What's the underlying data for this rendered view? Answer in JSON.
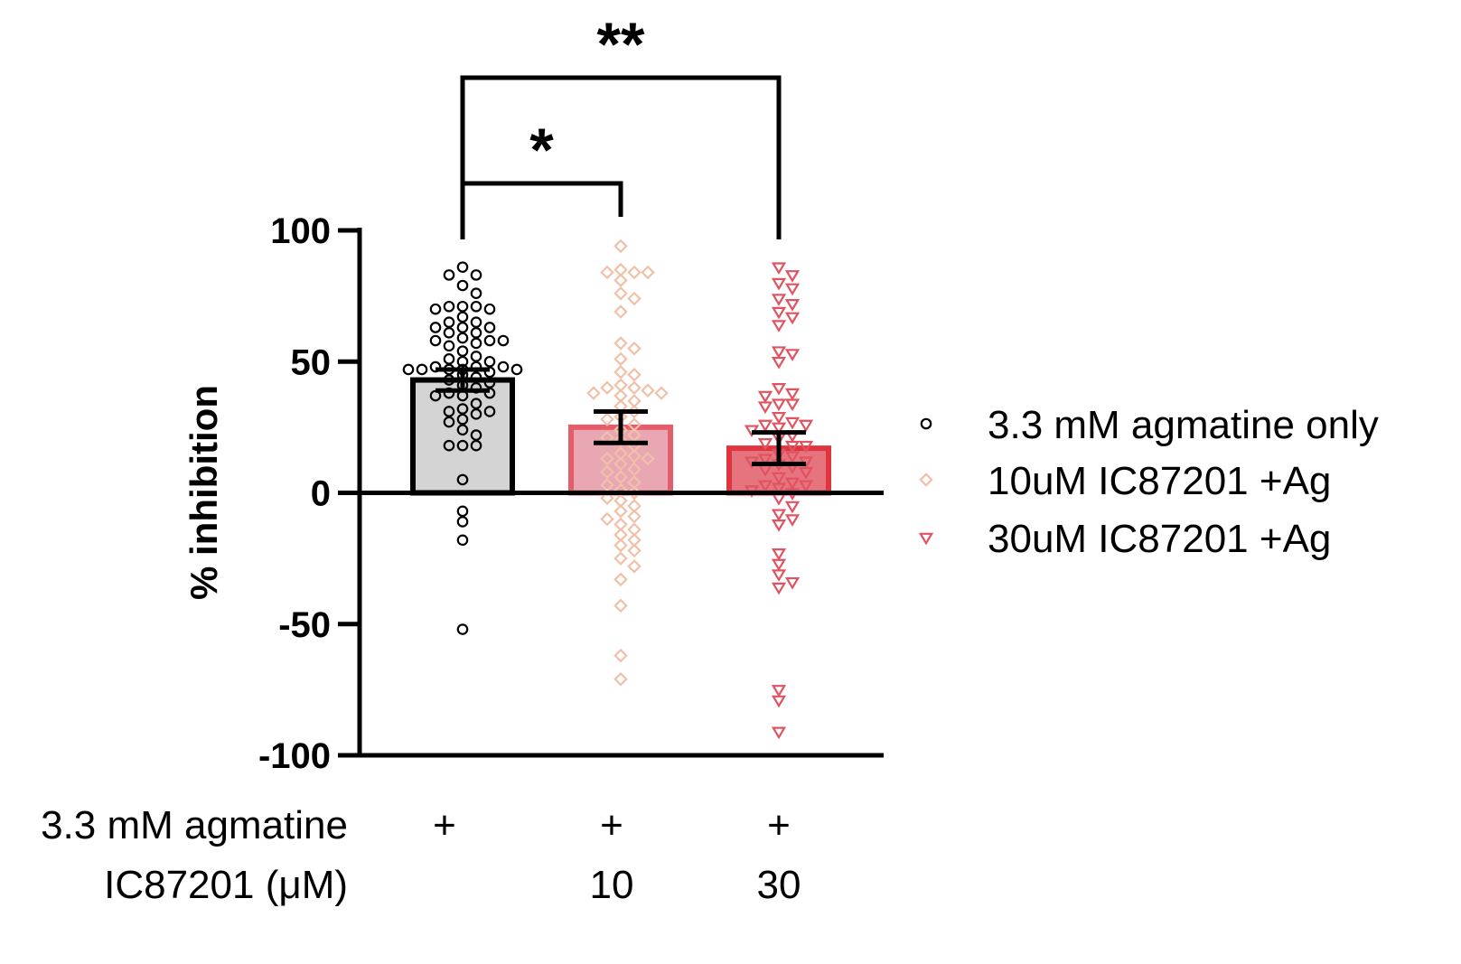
{
  "chart_data": {
    "type": "bar",
    "ylabel": "% inhibition",
    "ylim": [
      -100,
      100
    ],
    "yticks": [
      "100",
      "50",
      "0",
      "-50",
      "-100"
    ],
    "grid": false,
    "legend_position": "right",
    "categories": [
      "3.3 mM agmatine only",
      "10uM IC87201 +Ag",
      "30uM IC87201 +Ag"
    ],
    "series": [
      {
        "name": "3.3 mM agmatine only",
        "mean": 43,
        "sem": 4,
        "marker": "circle",
        "color": "#000000",
        "bar_fill": "#d4d4d4",
        "bar_stroke": "#000000",
        "points": [
          86,
          83,
          83,
          79,
          76,
          71,
          71,
          71,
          70,
          70,
          67,
          65,
          65,
          63,
          63,
          63,
          61,
          61,
          59,
          58,
          58,
          58,
          57,
          56,
          54,
          52,
          51,
          50,
          50,
          48,
          48,
          48,
          47,
          47,
          47,
          47,
          47,
          46,
          45,
          44,
          43,
          42,
          41,
          40,
          38,
          38,
          37,
          37,
          34,
          32,
          31,
          31,
          30,
          28,
          27,
          24,
          22,
          18,
          18,
          18,
          5,
          -7,
          -11,
          -18,
          -52
        ]
      },
      {
        "name": "10uM IC87201 +Ag",
        "mean": 25,
        "sem": 6,
        "marker": "diamond",
        "color": "#f0c0a8",
        "bar_fill": "#e8a7b3",
        "bar_stroke": "#e45d6a",
        "points": [
          94,
          85,
          84,
          84,
          84,
          81,
          76,
          74,
          69,
          57,
          55,
          51,
          46,
          45,
          41,
          40,
          40,
          39,
          38,
          38,
          37,
          35,
          33,
          31,
          29,
          28,
          26,
          24,
          22,
          21,
          20,
          18,
          15,
          14,
          13,
          13,
          11,
          9,
          8,
          6,
          4,
          3,
          1,
          0,
          -2,
          -3,
          -5,
          -7,
          -9,
          -10,
          -12,
          -14,
          -16,
          -18,
          -20,
          -22,
          -25,
          -28,
          -33,
          -43,
          -62,
          -71
        ]
      },
      {
        "name": "30uM IC87201 +Ag",
        "mean": 17,
        "sem": 6,
        "marker": "triangle-down",
        "color": "#e05360",
        "bar_fill": "#e6747e",
        "bar_stroke": "#e0353f",
        "points": [
          86,
          83,
          80,
          78,
          74,
          72,
          69,
          67,
          64,
          54,
          53,
          50,
          40,
          38,
          37,
          34,
          34,
          33,
          29,
          27,
          26,
          26,
          25,
          24,
          22,
          21,
          19,
          18,
          18,
          15,
          14,
          13,
          12,
          12,
          11,
          10,
          9,
          8,
          6,
          4,
          3,
          3,
          2,
          1,
          0,
          -2,
          -5,
          -8,
          -10,
          -12,
          -23,
          -27,
          -31,
          -34,
          -36,
          -75,
          -79,
          -91
        ]
      }
    ],
    "significance": [
      {
        "from": 0,
        "to": 1,
        "label": "*"
      },
      {
        "from": 0,
        "to": 2,
        "label": "**"
      }
    ],
    "conditions": [
      {
        "label": "3.3 mM agmatine",
        "values": [
          "+",
          "+",
          "+"
        ]
      },
      {
        "label": "IC87201 (μM)",
        "values": [
          "",
          "10",
          "30"
        ]
      }
    ]
  }
}
